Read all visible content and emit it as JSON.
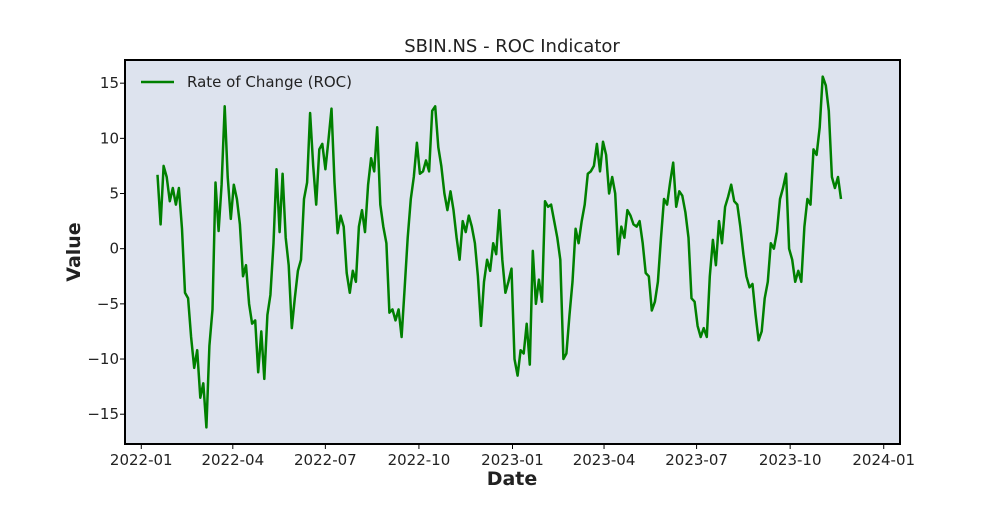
{
  "chart_data": {
    "type": "line",
    "title": "SBIN.NS - ROC Indicator",
    "xlabel": "Date",
    "ylabel": "Value",
    "x_ticks": [
      "2022-01",
      "2022-04",
      "2022-07",
      "2022-10",
      "2023-01",
      "2023-04",
      "2023-07",
      "2023-10",
      "2024-01"
    ],
    "y_ticks": [
      -15,
      -10,
      -5,
      0,
      5,
      10,
      15
    ],
    "xlim": [
      "2021-12-16",
      "2024-01-17"
    ],
    "ylim": [
      -17.7,
      17.1
    ],
    "grid": false,
    "legend_position": "top-left",
    "plot_background": "#dde3ee",
    "series": [
      {
        "name": "Rate of Change (ROC)",
        "color": "#008000",
        "points": [
          [
            "2022-01-17",
            6.7
          ],
          [
            "2022-01-20",
            2.2
          ],
          [
            "2022-01-23",
            7.5
          ],
          [
            "2022-01-26",
            6.5
          ],
          [
            "2022-01-29",
            4.3
          ],
          [
            "2022-02-01",
            5.5
          ],
          [
            "2022-02-04",
            4.0
          ],
          [
            "2022-02-07",
            5.5
          ],
          [
            "2022-02-10",
            1.8
          ],
          [
            "2022-02-13",
            -4.0
          ],
          [
            "2022-02-16",
            -4.5
          ],
          [
            "2022-02-19",
            -8.0
          ],
          [
            "2022-02-22",
            -10.8
          ],
          [
            "2022-02-25",
            -9.2
          ],
          [
            "2022-02-28",
            -13.5
          ],
          [
            "2022-03-03",
            -12.2
          ],
          [
            "2022-03-06",
            -16.2
          ],
          [
            "2022-03-09",
            -8.8
          ],
          [
            "2022-03-12",
            -5.5
          ],
          [
            "2022-03-15",
            6.0
          ],
          [
            "2022-03-18",
            1.6
          ],
          [
            "2022-03-21",
            5.8
          ],
          [
            "2022-03-24",
            12.9
          ],
          [
            "2022-03-27",
            6.5
          ],
          [
            "2022-03-30",
            2.7
          ],
          [
            "2022-04-02",
            5.8
          ],
          [
            "2022-04-05",
            4.5
          ],
          [
            "2022-04-08",
            2.2
          ],
          [
            "2022-04-11",
            -2.5
          ],
          [
            "2022-04-14",
            -1.5
          ],
          [
            "2022-04-17",
            -5.0
          ],
          [
            "2022-04-20",
            -6.8
          ],
          [
            "2022-04-23",
            -6.5
          ],
          [
            "2022-04-26",
            -11.2
          ],
          [
            "2022-04-29",
            -7.5
          ],
          [
            "2022-05-02",
            -11.8
          ],
          [
            "2022-05-05",
            -6.0
          ],
          [
            "2022-05-08",
            -4.2
          ],
          [
            "2022-05-11",
            0.5
          ],
          [
            "2022-05-14",
            7.2
          ],
          [
            "2022-05-17",
            1.5
          ],
          [
            "2022-05-20",
            6.8
          ],
          [
            "2022-05-23",
            1.0
          ],
          [
            "2022-05-26",
            -1.5
          ],
          [
            "2022-05-29",
            -7.2
          ],
          [
            "2022-06-01",
            -4.5
          ],
          [
            "2022-06-04",
            -2.0
          ],
          [
            "2022-06-07",
            -1.0
          ],
          [
            "2022-06-10",
            4.5
          ],
          [
            "2022-06-13",
            6.0
          ],
          [
            "2022-06-16",
            12.3
          ],
          [
            "2022-06-19",
            7.5
          ],
          [
            "2022-06-22",
            4.0
          ],
          [
            "2022-06-25",
            9.0
          ],
          [
            "2022-06-28",
            9.5
          ],
          [
            "2022-07-01",
            7.2
          ],
          [
            "2022-07-04",
            9.8
          ],
          [
            "2022-07-07",
            12.7
          ],
          [
            "2022-07-10",
            6.0
          ],
          [
            "2022-07-13",
            1.4
          ],
          [
            "2022-07-16",
            3.0
          ],
          [
            "2022-07-19",
            2.0
          ],
          [
            "2022-07-22",
            -2.2
          ],
          [
            "2022-07-25",
            -4.0
          ],
          [
            "2022-07-28",
            -2.0
          ],
          [
            "2022-07-31",
            -3.0
          ],
          [
            "2022-08-03",
            2.0
          ],
          [
            "2022-08-06",
            3.5
          ],
          [
            "2022-08-09",
            1.5
          ],
          [
            "2022-08-12",
            5.8
          ],
          [
            "2022-08-15",
            8.2
          ],
          [
            "2022-08-18",
            7.0
          ],
          [
            "2022-08-21",
            11.0
          ],
          [
            "2022-08-24",
            4.0
          ],
          [
            "2022-08-27",
            2.0
          ],
          [
            "2022-08-30",
            0.5
          ],
          [
            "2022-09-02",
            -5.8
          ],
          [
            "2022-09-05",
            -5.5
          ],
          [
            "2022-09-08",
            -6.5
          ],
          [
            "2022-09-11",
            -5.5
          ],
          [
            "2022-09-14",
            -8.0
          ],
          [
            "2022-09-17",
            -3.5
          ],
          [
            "2022-09-20",
            1.0
          ],
          [
            "2022-09-23",
            4.5
          ],
          [
            "2022-09-26",
            6.5
          ],
          [
            "2022-09-29",
            9.6
          ],
          [
            "2022-10-02",
            6.8
          ],
          [
            "2022-10-05",
            7.0
          ],
          [
            "2022-10-08",
            8.0
          ],
          [
            "2022-10-11",
            7.0
          ],
          [
            "2022-10-14",
            12.5
          ],
          [
            "2022-10-17",
            12.9
          ],
          [
            "2022-10-20",
            9.2
          ],
          [
            "2022-10-23",
            7.5
          ],
          [
            "2022-10-26",
            5.0
          ],
          [
            "2022-10-29",
            3.5
          ],
          [
            "2022-11-01",
            5.2
          ],
          [
            "2022-11-04",
            3.5
          ],
          [
            "2022-11-07",
            1.0
          ],
          [
            "2022-11-10",
            -1.0
          ],
          [
            "2022-11-13",
            2.5
          ],
          [
            "2022-11-16",
            1.5
          ],
          [
            "2022-11-19",
            3.0
          ],
          [
            "2022-11-22",
            2.0
          ],
          [
            "2022-11-25",
            0.5
          ],
          [
            "2022-11-28",
            -2.5
          ],
          [
            "2022-12-01",
            -7.0
          ],
          [
            "2022-12-04",
            -3.0
          ],
          [
            "2022-12-07",
            -1.0
          ],
          [
            "2022-12-10",
            -2.0
          ],
          [
            "2022-12-13",
            0.5
          ],
          [
            "2022-12-16",
            -0.5
          ],
          [
            "2022-12-19",
            3.5
          ],
          [
            "2022-12-22",
            -1.0
          ],
          [
            "2022-12-25",
            -4.0
          ],
          [
            "2022-12-28",
            -3.0
          ],
          [
            "2022-12-31",
            -1.8
          ],
          [
            "2023-01-03",
            -10.0
          ],
          [
            "2023-01-06",
            -11.5
          ],
          [
            "2023-01-09",
            -9.2
          ],
          [
            "2023-01-12",
            -9.5
          ],
          [
            "2023-01-15",
            -6.8
          ],
          [
            "2023-01-18",
            -10.5
          ],
          [
            "2023-01-21",
            -0.2
          ],
          [
            "2023-01-24",
            -5.0
          ],
          [
            "2023-01-27",
            -2.8
          ],
          [
            "2023-01-30",
            -4.8
          ],
          [
            "2023-02-02",
            4.3
          ],
          [
            "2023-02-05",
            3.8
          ],
          [
            "2023-02-08",
            4.0
          ],
          [
            "2023-02-11",
            2.5
          ],
          [
            "2023-02-14",
            1.0
          ],
          [
            "2023-02-17",
            -1.0
          ],
          [
            "2023-02-20",
            -10.0
          ],
          [
            "2023-02-23",
            -9.5
          ],
          [
            "2023-02-26",
            -6.0
          ],
          [
            "2023-03-01",
            -3.0
          ],
          [
            "2023-03-04",
            1.8
          ],
          [
            "2023-03-07",
            0.5
          ],
          [
            "2023-03-10",
            2.5
          ],
          [
            "2023-03-13",
            4.0
          ],
          [
            "2023-03-16",
            6.8
          ],
          [
            "2023-03-19",
            7.0
          ],
          [
            "2023-03-22",
            7.5
          ],
          [
            "2023-03-25",
            9.5
          ],
          [
            "2023-03-28",
            7.0
          ],
          [
            "2023-03-31",
            9.7
          ],
          [
            "2023-04-03",
            8.5
          ],
          [
            "2023-04-06",
            5.0
          ],
          [
            "2023-04-09",
            6.5
          ],
          [
            "2023-04-12",
            5.0
          ],
          [
            "2023-04-15",
            -0.5
          ],
          [
            "2023-04-18",
            2.0
          ],
          [
            "2023-04-21",
            1.0
          ],
          [
            "2023-04-24",
            3.5
          ],
          [
            "2023-04-27",
            3.0
          ],
          [
            "2023-04-30",
            2.2
          ],
          [
            "2023-05-03",
            2.0
          ],
          [
            "2023-05-06",
            2.5
          ],
          [
            "2023-05-09",
            0.5
          ],
          [
            "2023-05-12",
            -2.2
          ],
          [
            "2023-05-15",
            -2.5
          ],
          [
            "2023-05-18",
            -5.6
          ],
          [
            "2023-05-21",
            -4.8
          ],
          [
            "2023-05-24",
            -3.0
          ],
          [
            "2023-05-27",
            1.0
          ],
          [
            "2023-05-30",
            4.5
          ],
          [
            "2023-06-02",
            4.0
          ],
          [
            "2023-06-05",
            6.0
          ],
          [
            "2023-06-08",
            7.8
          ],
          [
            "2023-06-11",
            3.8
          ],
          [
            "2023-06-14",
            5.2
          ],
          [
            "2023-06-17",
            4.8
          ],
          [
            "2023-06-20",
            3.3
          ],
          [
            "2023-06-23",
            1.0
          ],
          [
            "2023-06-26",
            -4.5
          ],
          [
            "2023-06-29",
            -4.8
          ],
          [
            "2023-07-02",
            -7.0
          ],
          [
            "2023-07-05",
            -8.0
          ],
          [
            "2023-07-08",
            -7.2
          ],
          [
            "2023-07-11",
            -8.0
          ],
          [
            "2023-07-14",
            -2.5
          ],
          [
            "2023-07-17",
            0.8
          ],
          [
            "2023-07-20",
            -1.5
          ],
          [
            "2023-07-23",
            2.5
          ],
          [
            "2023-07-26",
            0.5
          ],
          [
            "2023-07-29",
            3.8
          ],
          [
            "2023-08-01",
            4.7
          ],
          [
            "2023-08-04",
            5.8
          ],
          [
            "2023-08-07",
            4.3
          ],
          [
            "2023-08-10",
            4.0
          ],
          [
            "2023-08-13",
            2.0
          ],
          [
            "2023-08-16",
            -0.5
          ],
          [
            "2023-08-19",
            -2.5
          ],
          [
            "2023-08-22",
            -3.5
          ],
          [
            "2023-08-25",
            -3.2
          ],
          [
            "2023-08-28",
            -6.0
          ],
          [
            "2023-08-31",
            -8.3
          ],
          [
            "2023-09-03",
            -7.5
          ],
          [
            "2023-09-06",
            -4.5
          ],
          [
            "2023-09-09",
            -3.0
          ],
          [
            "2023-09-12",
            0.5
          ],
          [
            "2023-09-15",
            0.0
          ],
          [
            "2023-09-18",
            1.5
          ],
          [
            "2023-09-21",
            4.5
          ],
          [
            "2023-09-24",
            5.5
          ],
          [
            "2023-09-27",
            6.8
          ],
          [
            "2023-09-30",
            0.0
          ],
          [
            "2023-10-03",
            -1.0
          ],
          [
            "2023-10-06",
            -3.0
          ],
          [
            "2023-10-09",
            -2.0
          ],
          [
            "2023-10-12",
            -3.0
          ],
          [
            "2023-10-15",
            2.0
          ],
          [
            "2023-10-18",
            4.5
          ],
          [
            "2023-10-21",
            4.0
          ],
          [
            "2023-10-24",
            9.0
          ],
          [
            "2023-10-27",
            8.5
          ],
          [
            "2023-10-30",
            11.0
          ],
          [
            "2023-11-02",
            15.6
          ],
          [
            "2023-11-05",
            14.8
          ],
          [
            "2023-11-08",
            12.5
          ],
          [
            "2023-11-11",
            6.5
          ],
          [
            "2023-11-14",
            5.5
          ],
          [
            "2023-11-17",
            6.5
          ],
          [
            "2023-11-20",
            4.5
          ]
        ]
      }
    ]
  }
}
